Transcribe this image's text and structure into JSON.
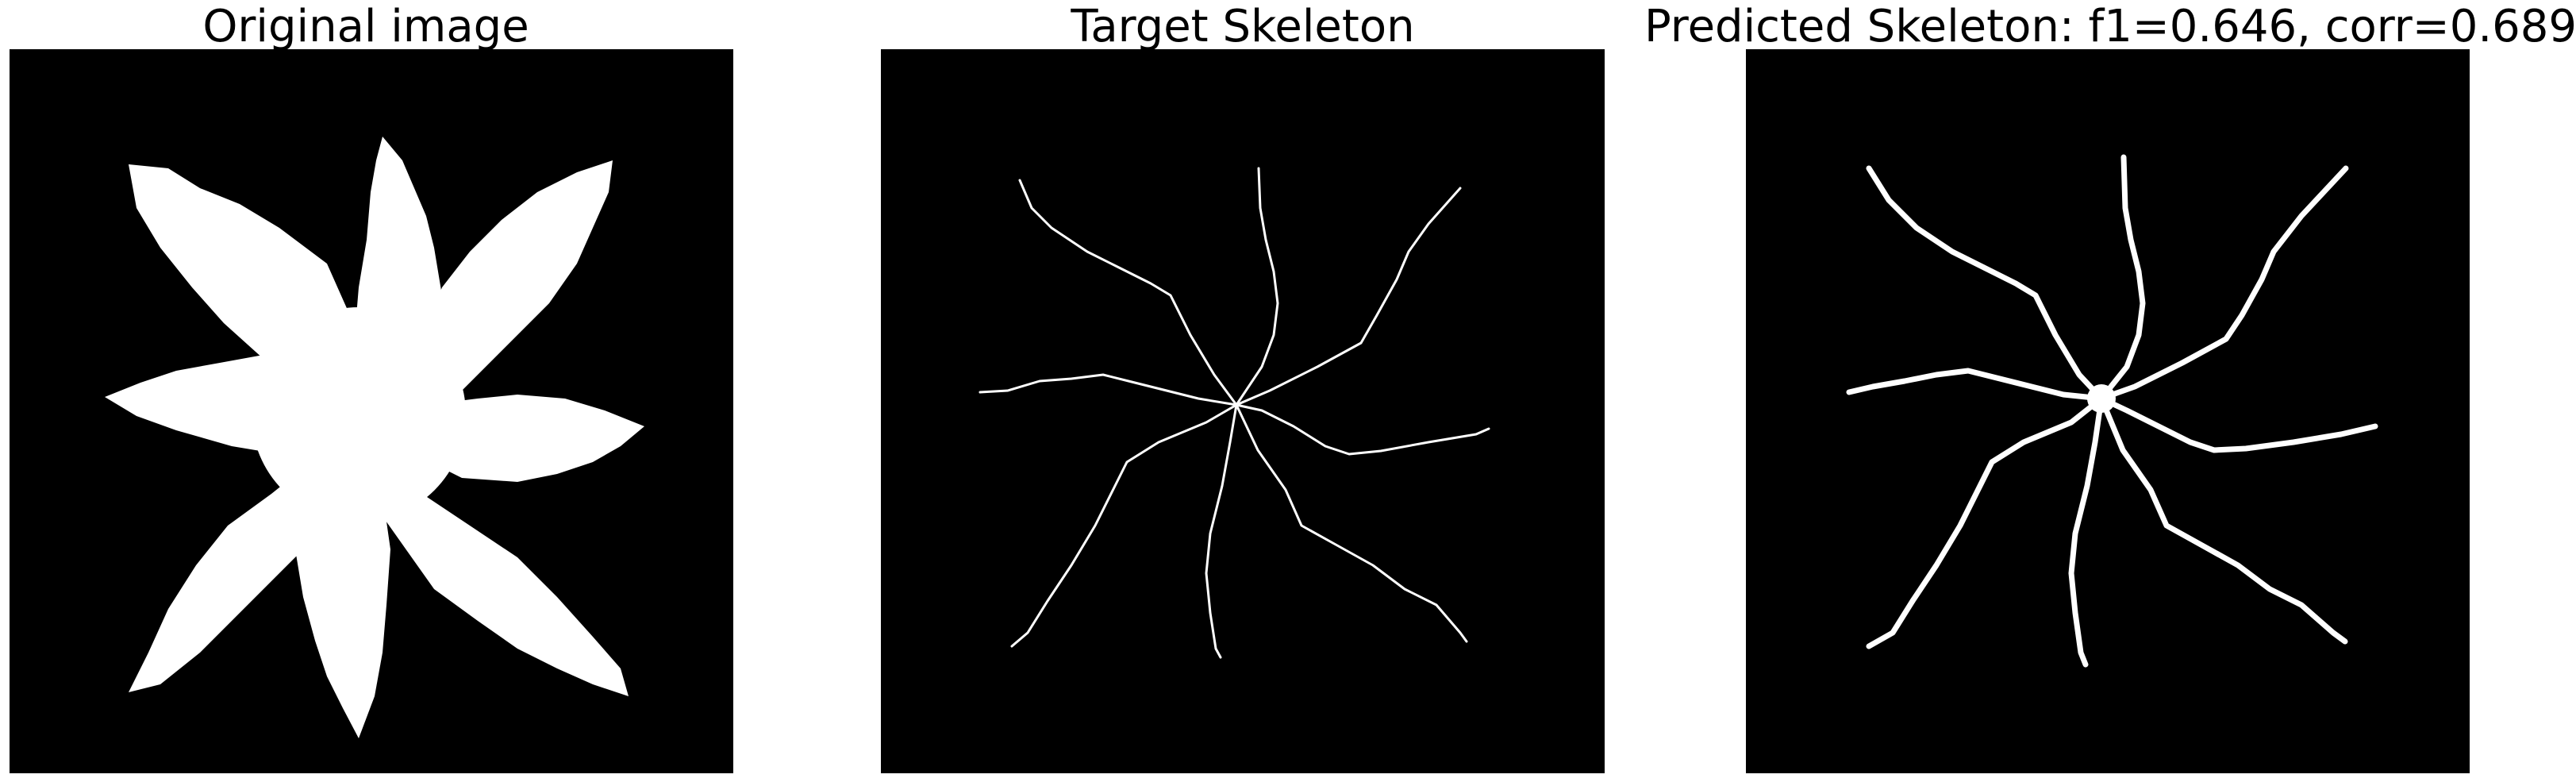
{
  "panels": [
    {
      "title": "Original image"
    },
    {
      "title": "Target Skeleton"
    },
    {
      "title": "Predicted Skeleton: f1=0.646, corr=0.689"
    }
  ],
  "colors": {
    "background": "#000000",
    "foreground": "#ffffff",
    "page": "#ffffff"
  }
}
